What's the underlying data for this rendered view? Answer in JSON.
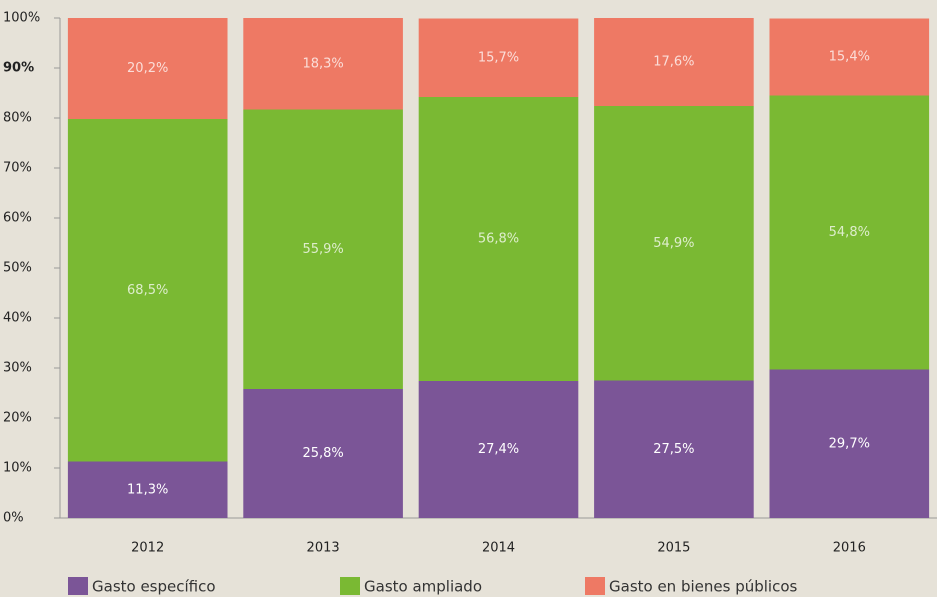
{
  "chart_data": {
    "type": "stacked_bar",
    "categories": [
      "2012",
      "2013",
      "2014",
      "2015",
      "2016"
    ],
    "series": [
      {
        "name": "Gasto específico",
        "color": "#7b5597",
        "values": [
          11.3,
          25.8,
          27.4,
          27.5,
          29.7
        ],
        "value_labels": [
          "11,3%",
          "25,8%",
          "27,4%",
          "27,5%",
          "29,7%"
        ]
      },
      {
        "name": "Gasto ampliado",
        "color": "#7ab933",
        "values": [
          68.5,
          55.9,
          56.8,
          54.9,
          54.8
        ],
        "value_labels": [
          "68,5%",
          "55,9%",
          "56,8%",
          "54,9%",
          "54,8%"
        ]
      },
      {
        "name": "Gasto en bienes públicos",
        "color": "#ee7964",
        "values": [
          20.2,
          18.3,
          15.7,
          17.6,
          15.4
        ],
        "value_labels": [
          "20,2%",
          "18,3%",
          "15,7%",
          "17,6%",
          "15,4%"
        ]
      }
    ],
    "ylim": [
      0,
      100
    ],
    "yticks": [
      {
        "value": 0,
        "label": "0%"
      },
      {
        "value": 10,
        "label": "10%"
      },
      {
        "value": 20,
        "label": "20%"
      },
      {
        "value": 30,
        "label": "30%"
      },
      {
        "value": 40,
        "label": "40%"
      },
      {
        "value": 50,
        "label": "50%"
      },
      {
        "value": 60,
        "label": "60%"
      },
      {
        "value": 70,
        "label": "70%"
      },
      {
        "value": 80,
        "label": "80%"
      },
      {
        "value": 90,
        "label": "90%"
      },
      {
        "value": 100,
        "label": "100%"
      }
    ],
    "legend": "bottom"
  }
}
